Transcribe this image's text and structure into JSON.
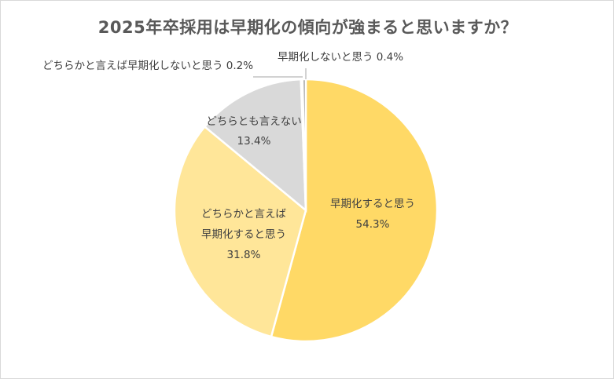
{
  "chart_data": {
    "type": "pie",
    "title": "2025年卒採用は早期化の傾向が強まると思いますか？",
    "slices": [
      {
        "name": "早期化すると思う",
        "lines": [
          "早期化すると思う"
        ],
        "value": 54.3,
        "pct_label": "54.3%",
        "color": "#ffd966"
      },
      {
        "name": "どちらかと言えば早期化すると思う",
        "lines": [
          "どちらかと言えば",
          "早期化すると思う"
        ],
        "value": 31.8,
        "pct_label": "31.8%",
        "color": "#ffe699"
      },
      {
        "name": "どちらとも言えない",
        "lines": [
          "どちらとも言えない"
        ],
        "value": 13.4,
        "pct_label": "13.4%",
        "color": "#d9d9d9"
      },
      {
        "name": "どちらかと言えば早期化しないと思う",
        "lines": [
          "どちらかと言えば早期化しないと思う 0.2%"
        ],
        "value": 0.2,
        "pct_label": "",
        "color": "#bfbfbf"
      },
      {
        "name": "早期化しないと思う",
        "lines": [
          "早期化しないと思う 0.4%"
        ],
        "value": 0.4,
        "pct_label": "",
        "color": "#a6a6a6"
      }
    ],
    "start_angle_deg": 0,
    "direction": "clockwise",
    "legend": "none"
  }
}
